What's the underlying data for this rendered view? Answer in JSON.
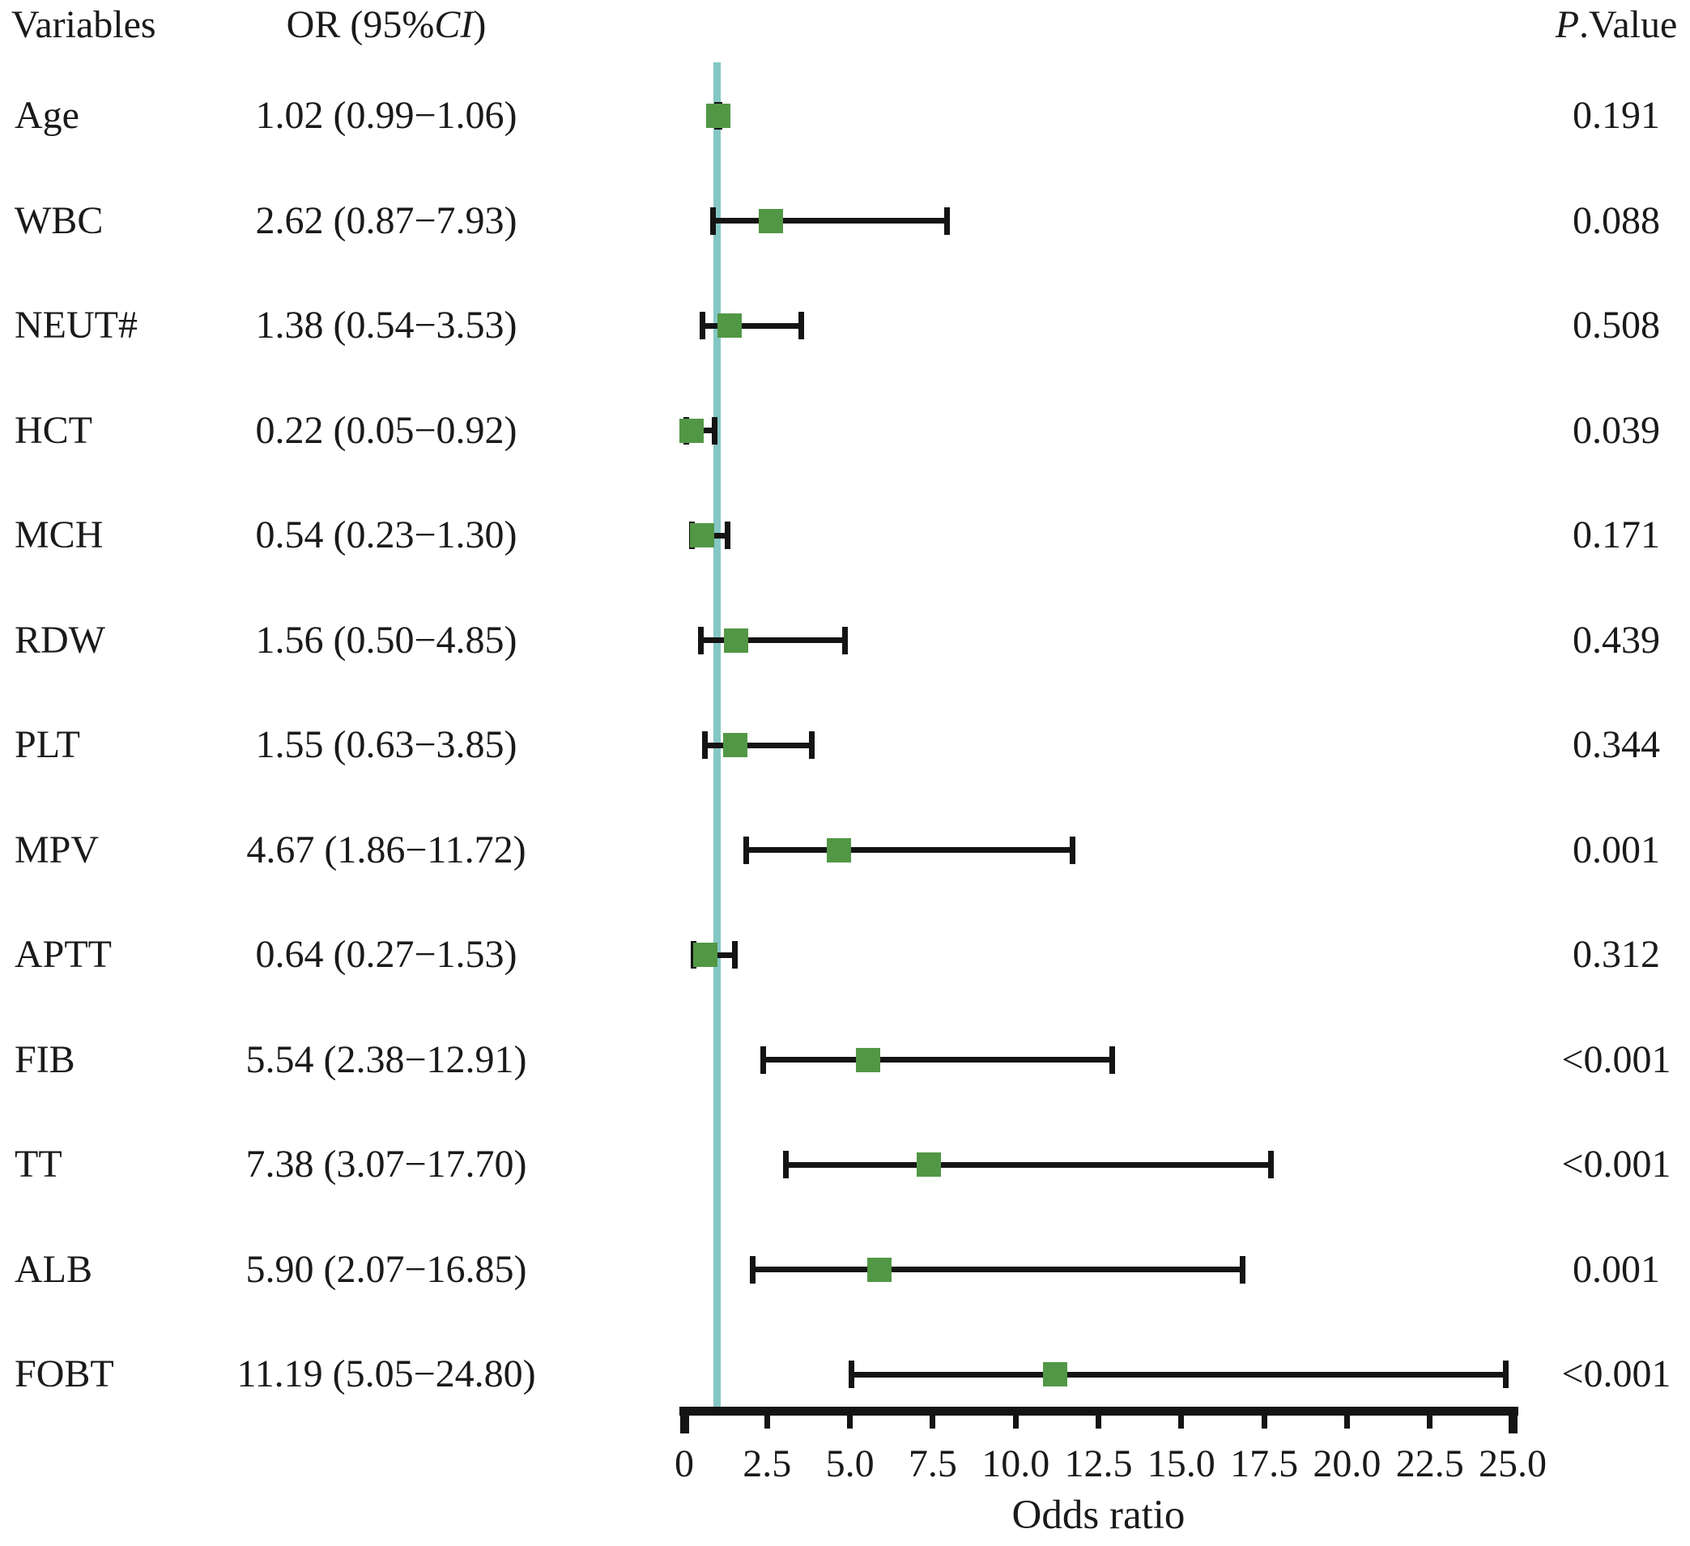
{
  "header": {
    "variables": "Variables",
    "or_prefix": "OR (95%",
    "or_italic": "CI",
    "or_suffix": ")",
    "p_italic": "P",
    "p_rest": ".Value"
  },
  "colors": {
    "marker_green": "#529745",
    "reference_teal": "#84c7c5",
    "bar_black": "#141414"
  },
  "axis": {
    "title": "Odds ratio",
    "min": 0,
    "max": 25,
    "tick_values": [
      0,
      2.5,
      5,
      7.5,
      10,
      12.5,
      15,
      17.5,
      20,
      22.5,
      25
    ],
    "tick_labels": [
      "0",
      "2.5",
      "5.0",
      "7.5",
      "10.0",
      "12.5",
      "15.0",
      "17.5",
      "20.0",
      "22.5",
      "25.0"
    ]
  },
  "reference_line_value": 1,
  "chart_data": {
    "type": "forest",
    "xlabel": "Odds ratio",
    "xlim": [
      0,
      25
    ],
    "reference_value": 1,
    "rows": [
      {
        "variable": "Age",
        "or_ci_label": "1.02 (0.99−1.06)",
        "or": 1.02,
        "ci_low": 0.99,
        "ci_high": 1.06,
        "p_value": "0.191"
      },
      {
        "variable": "WBC",
        "or_ci_label": "2.62 (0.87−7.93)",
        "or": 2.62,
        "ci_low": 0.87,
        "ci_high": 7.93,
        "p_value": "0.088"
      },
      {
        "variable": "NEUT#",
        "or_ci_label": "1.38 (0.54−3.53)",
        "or": 1.38,
        "ci_low": 0.54,
        "ci_high": 3.53,
        "p_value": "0.508"
      },
      {
        "variable": "HCT",
        "or_ci_label": "0.22 (0.05−0.92)",
        "or": 0.22,
        "ci_low": 0.05,
        "ci_high": 0.92,
        "p_value": "0.039"
      },
      {
        "variable": "MCH",
        "or_ci_label": "0.54 (0.23−1.30)",
        "or": 0.54,
        "ci_low": 0.23,
        "ci_high": 1.3,
        "p_value": "0.171"
      },
      {
        "variable": "RDW",
        "or_ci_label": "1.56 (0.50−4.85)",
        "or": 1.56,
        "ci_low": 0.5,
        "ci_high": 4.85,
        "p_value": "0.439"
      },
      {
        "variable": "PLT",
        "or_ci_label": "1.55 (0.63−3.85)",
        "or": 1.55,
        "ci_low": 0.63,
        "ci_high": 3.85,
        "p_value": "0.344"
      },
      {
        "variable": "MPV",
        "or_ci_label": "4.67 (1.86−11.72)",
        "or": 4.67,
        "ci_low": 1.86,
        "ci_high": 11.72,
        "p_value": "0.001"
      },
      {
        "variable": "APTT",
        "or_ci_label": "0.64 (0.27−1.53)",
        "or": 0.64,
        "ci_low": 0.27,
        "ci_high": 1.53,
        "p_value": "0.312"
      },
      {
        "variable": "FIB",
        "or_ci_label": "5.54 (2.38−12.91)",
        "or": 5.54,
        "ci_low": 2.38,
        "ci_high": 12.91,
        "p_value": "<0.001"
      },
      {
        "variable": "TT",
        "or_ci_label": "7.38 (3.07−17.70)",
        "or": 7.38,
        "ci_low": 3.07,
        "ci_high": 17.7,
        "p_value": "<0.001"
      },
      {
        "variable": "ALB",
        "or_ci_label": "5.90 (2.07−16.85)",
        "or": 5.9,
        "ci_low": 2.07,
        "ci_high": 16.85,
        "p_value": "0.001"
      },
      {
        "variable": "FOBT",
        "or_ci_label": "11.19 (5.05−24.80)",
        "or": 11.19,
        "ci_low": 5.05,
        "ci_high": 24.8,
        "p_value": "<0.001"
      }
    ]
  }
}
